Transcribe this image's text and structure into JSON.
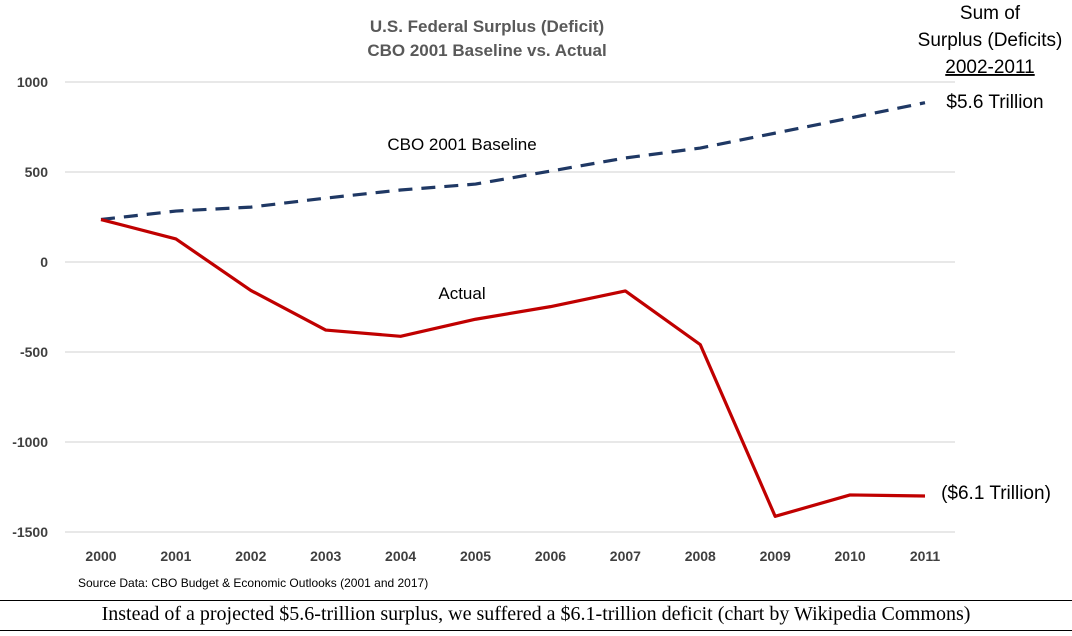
{
  "chart_data": {
    "type": "line",
    "title": "U.S. Federal Surplus (Deficit)",
    "subtitle": "CBO 2001 Baseline vs. Actual",
    "xlabel": "",
    "ylabel": "",
    "x": [
      "2000",
      "2001",
      "2002",
      "2003",
      "2004",
      "2005",
      "2006",
      "2007",
      "2008",
      "2009",
      "2010",
      "2011"
    ],
    "ylim": [
      -1500,
      1000
    ],
    "yticks": [
      "1000",
      "500",
      "0",
      "-500",
      "-1000",
      "-1500"
    ],
    "grid": true,
    "legend": "none",
    "series": [
      {
        "name": "CBO 2001 Baseline",
        "style": "dashed",
        "color": "#1f3864",
        "values": [
          236,
          283,
          305,
          355,
          400,
          433,
          505,
          578,
          633,
          716,
          800,
          885
        ]
      },
      {
        "name": "Actual",
        "style": "solid",
        "color": "#c00000",
        "values": [
          236,
          128,
          -158,
          -378,
          -413,
          -318,
          -248,
          -161,
          -459,
          -1413,
          -1294,
          -1300
        ]
      }
    ],
    "annotations": {
      "sum_header": [
        "Sum of",
        "Surplus (Deficits)",
        "2002-2011"
      ],
      "baseline_sum": "$5.6 Trillion",
      "actual_sum": "($6.1 Trillion)"
    },
    "source": "Source Data:  CBO Budget & Economic Outlooks (2001 and 2017)"
  },
  "caption": "Instead of a projected $5.6-trillion surplus, we suffered a $6.1-trillion deficit (chart by Wikipedia Commons)"
}
